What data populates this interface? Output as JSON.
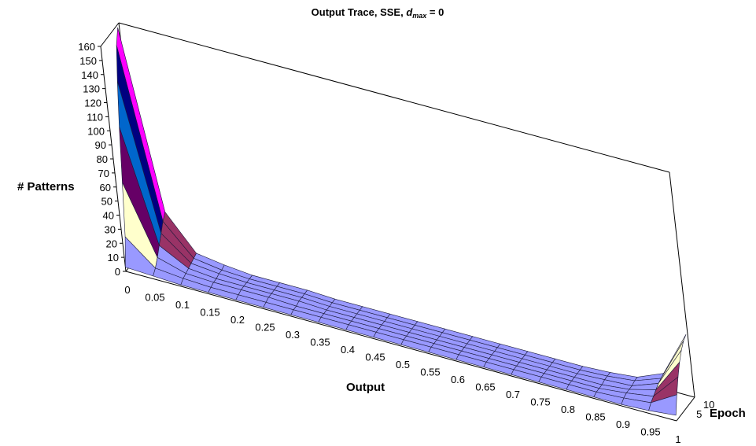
{
  "chart_data": {
    "type": "surface3d",
    "title_main": "Output Trace, SSE, ",
    "title_var": "d",
    "title_sub": "max",
    "title_tail": " = 0",
    "xlabel": "Output",
    "ylabel": "Epoch",
    "zlabel": "# Patterns",
    "x_ticks": [
      "0",
      "0.05",
      "0.1",
      "0.15",
      "0.2",
      "0.25",
      "0.3",
      "0.35",
      "0.4",
      "0.45",
      "0.5",
      "0.55",
      "0.6",
      "0.65",
      "0.7",
      "0.75",
      "0.8",
      "0.85",
      "0.9",
      "0.95",
      "1"
    ],
    "y_ticks": [
      "5",
      "10"
    ],
    "z_ticks": [
      "0",
      "10",
      "20",
      "30",
      "40",
      "50",
      "60",
      "70",
      "80",
      "90",
      "100",
      "110",
      "120",
      "130",
      "140",
      "150",
      "160"
    ],
    "xlim": [
      0,
      1
    ],
    "ylim": [
      1,
      14
    ],
    "zlim": [
      0,
      160
    ],
    "x": [
      0,
      0.05,
      0.1,
      0.15,
      0.2,
      0.25,
      0.3,
      0.35,
      0.4,
      0.45,
      0.5,
      0.55,
      0.6,
      0.65,
      0.7,
      0.75,
      0.8,
      0.85,
      0.9,
      0.95,
      1
    ],
    "epochs": [
      1,
      3,
      5,
      7,
      9,
      11,
      13
    ],
    "z": [
      [
        3,
        2,
        1,
        1,
        1,
        1,
        1,
        1,
        1,
        1,
        1,
        1,
        1,
        1,
        1,
        1,
        1,
        1,
        1,
        2,
        4
      ],
      [
        22,
        5,
        3,
        2,
        2,
        2,
        2,
        2,
        2,
        2,
        2,
        2,
        2,
        2,
        2,
        2,
        2,
        2,
        3,
        5,
        16
      ],
      [
        58,
        10,
        4,
        3,
        3,
        3,
        2,
        2,
        2,
        2,
        2,
        2,
        2,
        2,
        2,
        2,
        2,
        2,
        4,
        7,
        26
      ],
      [
        95,
        16,
        5,
        3,
        3,
        3,
        3,
        2,
        2,
        2,
        2,
        2,
        2,
        2,
        2,
        2,
        2,
        2,
        4,
        9,
        34
      ],
      [
        125,
        22,
        6,
        4,
        3,
        3,
        3,
        2,
        2,
        2,
        2,
        2,
        2,
        2,
        2,
        2,
        2,
        3,
        4,
        11,
        40
      ],
      [
        148,
        28,
        7,
        4,
        3,
        3,
        3,
        2,
        2,
        2,
        2,
        2,
        2,
        2,
        2,
        2,
        2,
        3,
        5,
        12,
        44
      ],
      [
        158,
        32,
        8,
        5,
        3,
        3,
        3,
        2,
        2,
        2,
        2,
        2,
        2,
        2,
        2,
        2,
        2,
        3,
        5,
        13,
        46
      ]
    ],
    "band_colors": [
      "#9999ff",
      "#993366",
      "#ffffcc",
      "#ccffff",
      "#660066",
      "#ff8080",
      "#0066cc",
      "#ccccff",
      "#000080",
      "#ff00ff",
      "#ffff00",
      "#00ffff",
      "#800080",
      "#800000",
      "#008080",
      "#0000ff"
    ],
    "grid": false,
    "legend": "none"
  }
}
